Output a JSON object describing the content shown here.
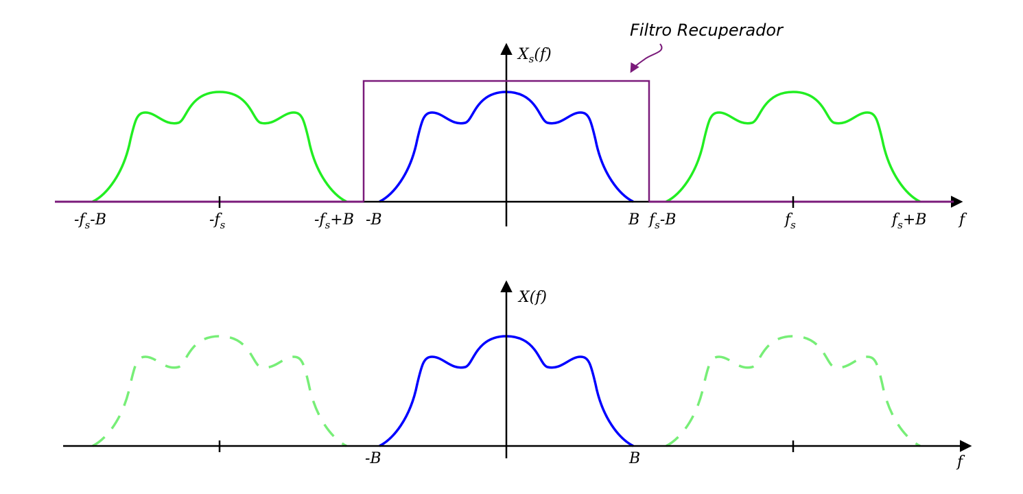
{
  "annotation": {
    "label": "Filtro Recuperador"
  },
  "top_plot": {
    "y_label_main": "X",
    "y_label_sub": "s",
    "y_label_arg": "(f)",
    "x_label": "f",
    "ticks": [
      {
        "id": "neg-fs-minus-b",
        "parts": [
          {
            "t": "-f"
          },
          {
            "t": "s",
            "sub": true
          },
          {
            "t": "-B"
          }
        ]
      },
      {
        "id": "neg-fs",
        "parts": [
          {
            "t": "-f"
          },
          {
            "t": "s",
            "sub": true
          }
        ]
      },
      {
        "id": "neg-fs-plus-b",
        "parts": [
          {
            "t": "-f"
          },
          {
            "t": "s",
            "sub": true
          },
          {
            "t": "+B"
          }
        ]
      },
      {
        "id": "neg-b",
        "parts": [
          {
            "t": "-B"
          }
        ]
      },
      {
        "id": "pos-b",
        "parts": [
          {
            "t": "B"
          }
        ]
      },
      {
        "id": "fs-minus-b",
        "parts": [
          {
            "t": "f"
          },
          {
            "t": "s",
            "sub": true
          },
          {
            "t": "-B"
          }
        ]
      },
      {
        "id": "fs",
        "parts": [
          {
            "t": "f"
          },
          {
            "t": "s",
            "sub": true
          }
        ]
      },
      {
        "id": "fs-plus-b",
        "parts": [
          {
            "t": "f"
          },
          {
            "t": "s",
            "sub": true
          },
          {
            "t": "+B"
          }
        ]
      }
    ]
  },
  "bottom_plot": {
    "y_label": "X(f)",
    "x_label": "f",
    "ticks": [
      {
        "id": "neg-b",
        "parts": [
          {
            "t": "-B"
          }
        ]
      },
      {
        "id": "pos-b",
        "parts": [
          {
            "t": "B"
          }
        ]
      }
    ]
  },
  "colors": {
    "baseband": "#0000ff",
    "replica": "#22ee22",
    "replica_dashed": "#77ee77",
    "filter": "#7a1a7a",
    "axis": "#000000"
  }
}
